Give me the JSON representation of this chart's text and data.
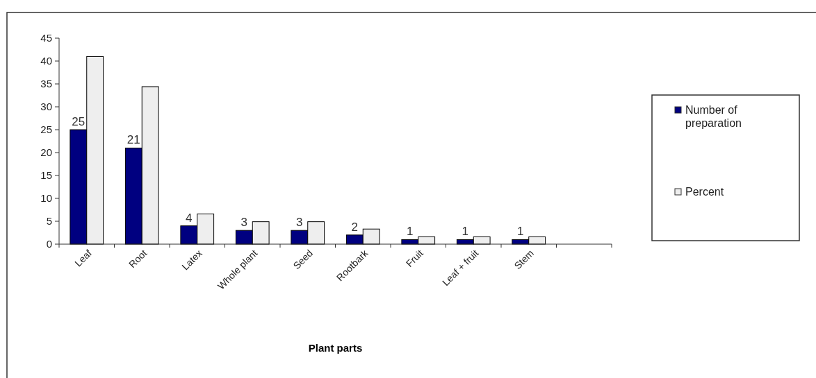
{
  "chart_data": {
    "type": "bar",
    "xlabel": "Plant parts",
    "categories": [
      "Leaf",
      "Root",
      "Latex",
      "Whole plant",
      "Seed",
      "Rootbark",
      "Fruit",
      "Leaf + fruit",
      "Stem",
      null
    ],
    "series": [
      {
        "name": "Number of preparation",
        "color": "#000080",
        "values": [
          25,
          21,
          4,
          3,
          3,
          2,
          1,
          1,
          1,
          null
        ],
        "value_labels": [
          "25",
          "21",
          "4",
          "3",
          "3",
          "2",
          "1",
          "1",
          "1",
          null
        ]
      },
      {
        "name": "Percent",
        "color": "#eeeeee",
        "values": [
          41,
          34.4,
          6.6,
          4.9,
          4.9,
          3.3,
          1.6,
          1.6,
          1.6,
          null
        ]
      }
    ],
    "ylim": [
      0,
      45
    ],
    "yticks": [
      0,
      5,
      10,
      15,
      20,
      25,
      30,
      35,
      40,
      45
    ],
    "grid": false,
    "legend": "right"
  }
}
